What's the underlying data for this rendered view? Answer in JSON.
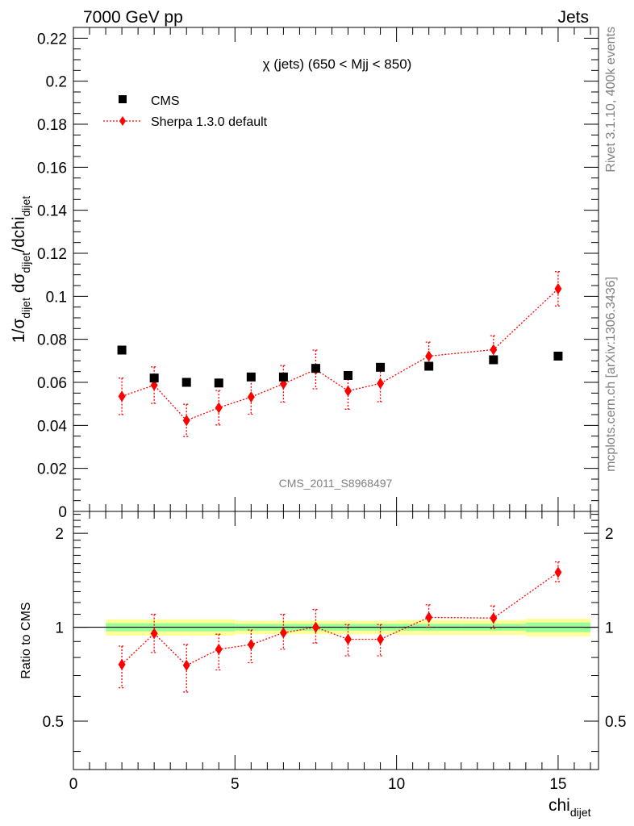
{
  "header": {
    "left": "7000 GeV pp",
    "right": "Jets"
  },
  "side": {
    "rivet": "Rivet 3.1.10,  400k events",
    "mcplots": "mcplots.cern.ch [arXiv:1306.3436]"
  },
  "colors": {
    "data": "#000000",
    "mc": "#ff0000",
    "band_outer": "#ffff99",
    "band_inner": "#99ff99"
  },
  "chart_data": [
    {
      "type": "scatter",
      "title": "χ (jets) (650 < Mjj <  850)",
      "ylabel_main": "1/σ",
      "ylabel_sub1": "dijet",
      "ylabel_mid": " dσ",
      "ylabel_sub2": "dijet",
      "ylabel_end": "/dchi",
      "ylabel_sub3": "dijet",
      "xlim": [
        0,
        16.25
      ],
      "ylim": [
        0,
        0.225
      ],
      "yticks": [
        "0",
        "0.02",
        "0.04",
        "0.06",
        "0.08",
        "0.1",
        "0.12",
        "0.14",
        "0.16",
        "0.18",
        "0.2",
        "0.22"
      ],
      "watermark": "CMS_2011_S8968497",
      "legend": {
        "placement": "top-left",
        "entries": [
          "CMS",
          "Sherpa 1.3.0 default"
        ]
      },
      "series": [
        {
          "name": "CMS",
          "points": [
            {
              "x": 1.5,
              "y": 0.075
            },
            {
              "x": 2.5,
              "y": 0.062
            },
            {
              "x": 3.5,
              "y": 0.06
            },
            {
              "x": 4.5,
              "y": 0.0597
            },
            {
              "x": 5.5,
              "y": 0.0625
            },
            {
              "x": 6.5,
              "y": 0.0625
            },
            {
              "x": 7.5,
              "y": 0.0665
            },
            {
              "x": 8.5,
              "y": 0.0632
            },
            {
              "x": 9.5,
              "y": 0.067
            },
            {
              "x": 11,
              "y": 0.0675
            },
            {
              "x": 13,
              "y": 0.0705
            },
            {
              "x": 15,
              "y": 0.0722
            }
          ]
        },
        {
          "name": "Sherpa 1.3.0 default",
          "points": [
            {
              "x": 1.5,
              "y": 0.0535,
              "err": 0.0085
            },
            {
              "x": 2.5,
              "y": 0.0587,
              "err": 0.0085
            },
            {
              "x": 3.5,
              "y": 0.0423,
              "err": 0.0075
            },
            {
              "x": 4.5,
              "y": 0.0482,
              "err": 0.008
            },
            {
              "x": 5.5,
              "y": 0.0532,
              "err": 0.008
            },
            {
              "x": 6.5,
              "y": 0.0593,
              "err": 0.0085
            },
            {
              "x": 7.5,
              "y": 0.066,
              "err": 0.009
            },
            {
              "x": 8.5,
              "y": 0.056,
              "err": 0.0085
            },
            {
              "x": 9.5,
              "y": 0.0595,
              "err": 0.0085
            },
            {
              "x": 11,
              "y": 0.0722,
              "err": 0.0065
            },
            {
              "x": 13,
              "y": 0.0752,
              "err": 0.0065
            },
            {
              "x": 15,
              "y": 0.1035,
              "err": 0.008
            }
          ]
        }
      ]
    },
    {
      "type": "scatter",
      "ylabel": "Ratio to CMS",
      "xlabel_main": "chi",
      "xlabel_sub": "dijet",
      "xlim": [
        0,
        16.25
      ],
      "ylim": [
        0.35,
        2.35
      ],
      "ylog": true,
      "yticks": [
        "0.5",
        "1",
        "2"
      ],
      "xticks": [
        "0",
        "5",
        "10",
        "15"
      ],
      "reference_line": 1,
      "band": [
        {
          "x0": 1,
          "x1": 2,
          "inner": 0.03,
          "outer": 0.06
        },
        {
          "x0": 2,
          "x1": 5,
          "inner": 0.03,
          "outer": 0.06
        },
        {
          "x0": 5,
          "x1": 10,
          "inner": 0.025,
          "outer": 0.05
        },
        {
          "x0": 10,
          "x1": 12,
          "inner": 0.025,
          "outer": 0.055
        },
        {
          "x0": 12,
          "x1": 14,
          "inner": 0.025,
          "outer": 0.055
        },
        {
          "x0": 14,
          "x1": 16,
          "inner": 0.035,
          "outer": 0.065
        }
      ],
      "series": [
        {
          "name": "Sherpa 1.3.0 default",
          "points": [
            {
              "x": 1.5,
              "y": 0.76,
              "lo": 0.64,
              "hi": 0.87
            },
            {
              "x": 2.5,
              "y": 0.955,
              "lo": 0.83,
              "hi": 1.1
            },
            {
              "x": 3.5,
              "y": 0.755,
              "lo": 0.62,
              "hi": 0.88
            },
            {
              "x": 4.5,
              "y": 0.85,
              "lo": 0.73,
              "hi": 0.95
            },
            {
              "x": 5.5,
              "y": 0.88,
              "lo": 0.77,
              "hi": 0.98
            },
            {
              "x": 6.5,
              "y": 0.96,
              "lo": 0.85,
              "hi": 1.1
            },
            {
              "x": 7.5,
              "y": 1.0,
              "lo": 0.89,
              "hi": 1.14
            },
            {
              "x": 8.5,
              "y": 0.915,
              "lo": 0.81,
              "hi": 1.02
            },
            {
              "x": 9.5,
              "y": 0.915,
              "lo": 0.81,
              "hi": 1.02
            },
            {
              "x": 11,
              "y": 1.075,
              "lo": 1.0,
              "hi": 1.18
            },
            {
              "x": 13,
              "y": 1.07,
              "lo": 0.99,
              "hi": 1.17
            },
            {
              "x": 15,
              "y": 1.5,
              "lo": 1.4,
              "hi": 1.62
            }
          ]
        }
      ]
    }
  ]
}
